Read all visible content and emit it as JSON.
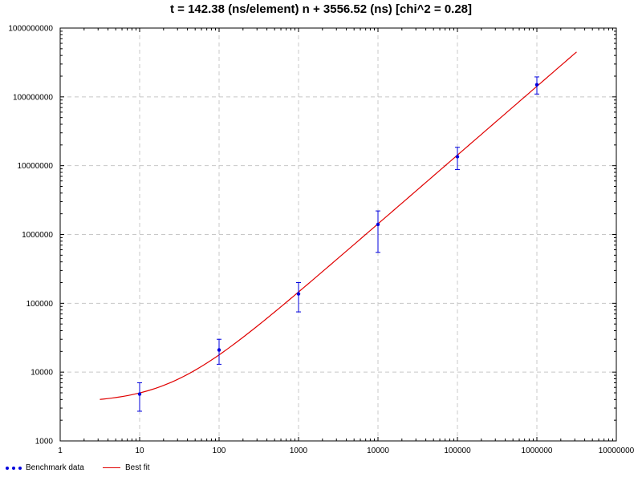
{
  "chart_data": {
    "type": "scatter",
    "title": "t = 142.38 (ns/element) n + 3556.52 (ns) [chi^2 = 0.28]",
    "xlabel": "",
    "ylabel": "",
    "x_scale": "log",
    "y_scale": "log",
    "xlim": [
      1,
      10000000
    ],
    "ylim": [
      1000,
      1000000000
    ],
    "x_ticks": [
      1,
      10,
      100,
      1000,
      10000,
      100000,
      1000000,
      10000000
    ],
    "x_tick_labels": [
      "1",
      "10",
      "100",
      "1000",
      "10000",
      "100000",
      "1000000",
      "10000000"
    ],
    "y_ticks": [
      1000,
      10000,
      100000,
      1000000,
      10000000,
      100000000,
      1000000000
    ],
    "y_tick_labels": [
      "1000",
      "10000",
      "100000",
      "1000000",
      "10000000",
      "100000000",
      "1000000000"
    ],
    "grid": true,
    "legend_position": "bottom-left",
    "series": [
      {
        "name": "Benchmark data",
        "kind": "points-with-errorbars",
        "color": "#0000dd",
        "points": [
          {
            "x": 10,
            "y": 4800,
            "y_low": 2700,
            "y_high": 7000
          },
          {
            "x": 100,
            "y": 21000,
            "y_low": 13000,
            "y_high": 30000
          },
          {
            "x": 1000,
            "y": 137000,
            "y_low": 75000,
            "y_high": 200000
          },
          {
            "x": 10000,
            "y": 1400000,
            "y_low": 550000,
            "y_high": 2200000
          },
          {
            "x": 100000,
            "y": 13500000,
            "y_low": 8800000,
            "y_high": 18500000
          },
          {
            "x": 1000000,
            "y": 150000000,
            "y_low": 110000000,
            "y_high": 195000000
          }
        ]
      },
      {
        "name": "Best fit",
        "kind": "line",
        "color": "#e00000",
        "fit": {
          "slope": 142.38,
          "intercept": 3556.52
        },
        "x_range": [
          3.16,
          3160000
        ]
      }
    ]
  }
}
